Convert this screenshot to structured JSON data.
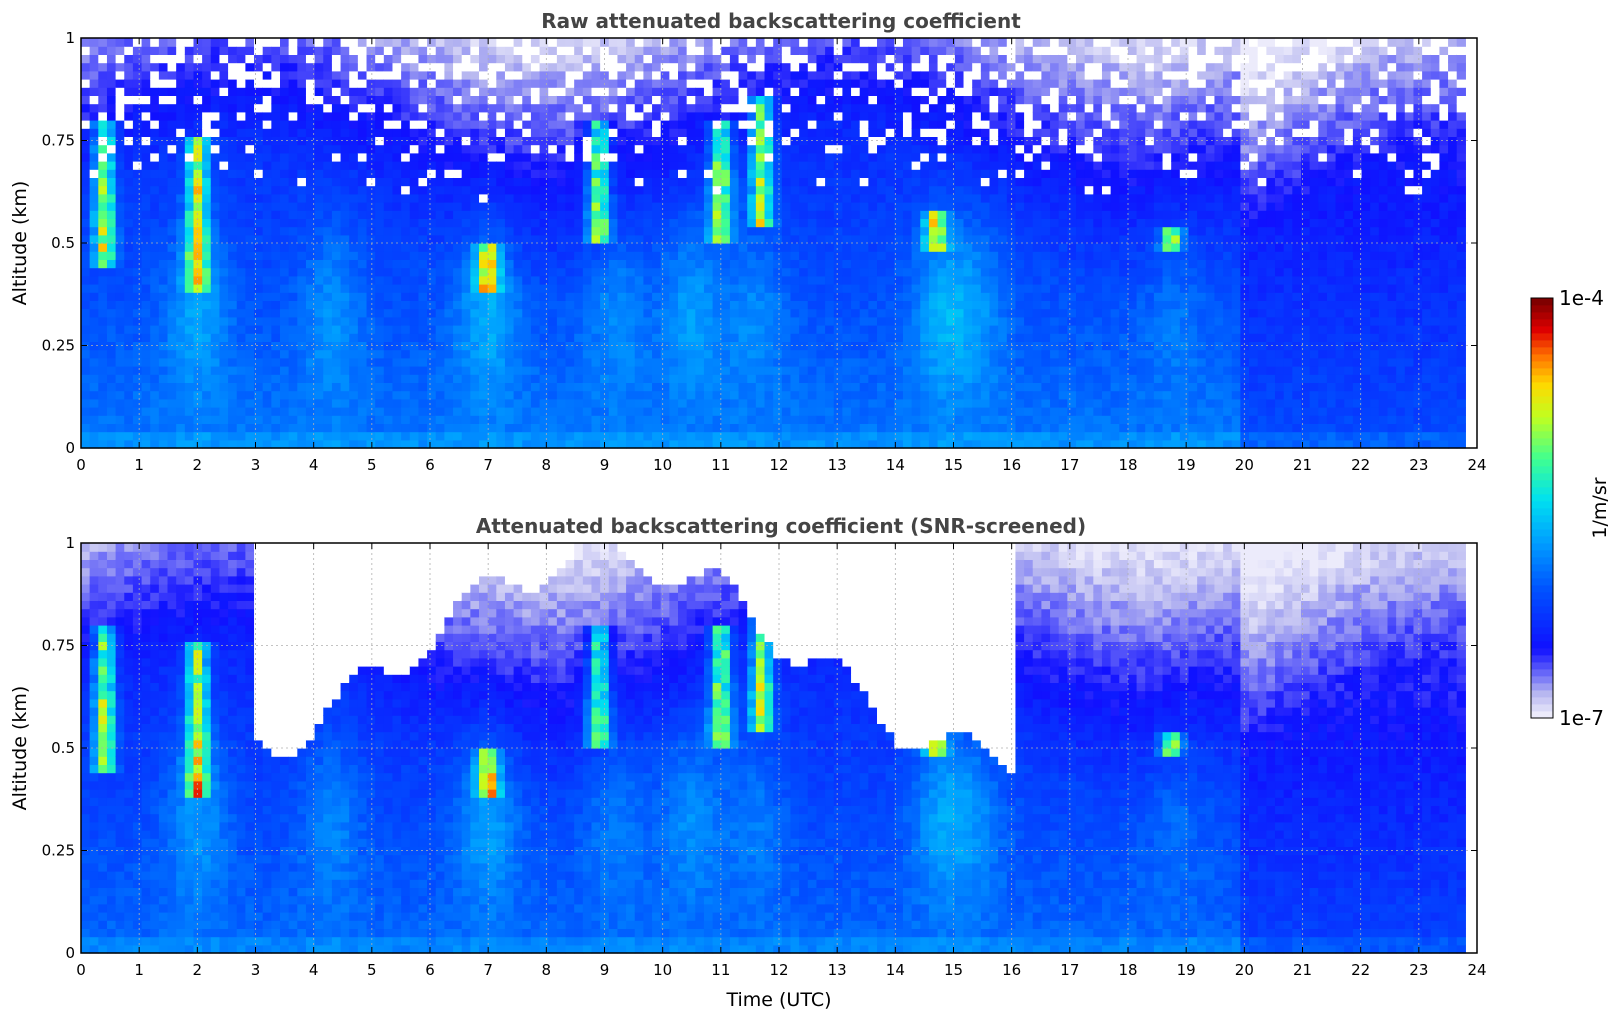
{
  "chart_data": [
    {
      "type": "heatmap",
      "title": "Raw attenuated backscattering coefficient",
      "xlabel": "",
      "ylabel": "Altitude (km)",
      "xlim": [
        0,
        24
      ],
      "ylim": [
        0,
        1
      ],
      "x_ticks": [
        "0",
        "1",
        "2",
        "3",
        "4",
        "5",
        "6",
        "7",
        "8",
        "9",
        "10",
        "11",
        "12",
        "13",
        "14",
        "15",
        "16",
        "17",
        "18",
        "19",
        "20",
        "21",
        "22",
        "23",
        "24"
      ],
      "y_ticks": [
        "0",
        "0.25",
        "0.5",
        "0.75",
        "1"
      ],
      "grid": true,
      "data_end_time": 23.8,
      "features": {
        "strong_layers": [
          {
            "time": 0.4,
            "altitude": [
              0.45,
              0.8
            ]
          },
          {
            "time": 2.0,
            "altitude": [
              0.38,
              0.75
            ]
          },
          {
            "time": 7.0,
            "altitude": [
              0.38,
              0.5
            ]
          },
          {
            "time": 8.9,
            "altitude": [
              0.5,
              0.8
            ]
          },
          {
            "time": 11.0,
            "altitude": [
              0.5,
              0.8
            ]
          },
          {
            "time": 11.7,
            "altitude": [
              0.55,
              0.85
            ]
          },
          {
            "time": 14.7,
            "altitude": [
              0.48,
              0.58
            ]
          },
          {
            "time": 18.75,
            "altitude": [
              0.48,
              0.53
            ]
          }
        ],
        "noisy_above_km": 0.6
      }
    },
    {
      "type": "heatmap",
      "title": "Attenuated backscattering coefficient (SNR-screened)",
      "xlabel": "Time (UTC)",
      "ylabel": "Altitude (km)",
      "xlim": [
        0,
        24
      ],
      "ylim": [
        0,
        1
      ],
      "x_ticks": [
        "0",
        "1",
        "2",
        "3",
        "4",
        "5",
        "6",
        "7",
        "8",
        "9",
        "10",
        "11",
        "12",
        "13",
        "14",
        "15",
        "16",
        "17",
        "18",
        "19",
        "20",
        "21",
        "22",
        "23",
        "24"
      ],
      "y_ticks": [
        "0",
        "0.25",
        "0.5",
        "0.75",
        "1"
      ],
      "grid": true,
      "data_end_time": 23.8,
      "screened_region": "white (no data) above boundary layer between 3 and 16 UTC"
    }
  ],
  "colorbar": {
    "label": "1/m/sr",
    "max_label": "1e-4",
    "min_label": "1e-7",
    "scale": "log",
    "colormap": "jet",
    "colors": [
      "#ecebfb",
      "#c8c8f2",
      "#8c8cf0",
      "#2020ff",
      "#0040ff",
      "#0080ff",
      "#00b8ff",
      "#00e8e0",
      "#40ff90",
      "#b0ff30",
      "#ffe000",
      "#ff8000",
      "#ff2000",
      "#c00000",
      "#800000"
    ]
  }
}
